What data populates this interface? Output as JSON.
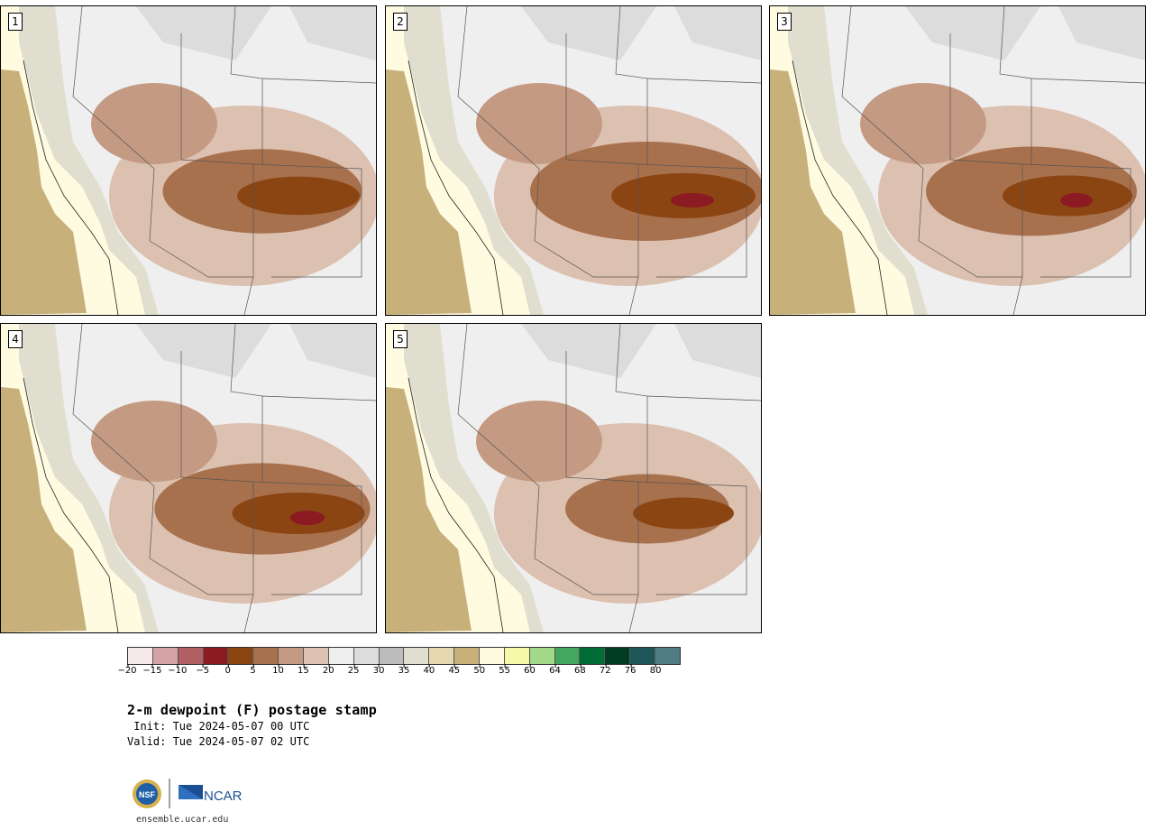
{
  "product": {
    "title": "2-m dewpoint (F) postage stamp",
    "init": " Init: Tue 2024-05-07 00 UTC",
    "valid": "Valid: Tue 2024-05-07 02 UTC"
  },
  "members": [
    {
      "label": "1",
      "intensity": 0.85
    },
    {
      "label": "2",
      "intensity": 1.0
    },
    {
      "label": "3",
      "intensity": 0.9
    },
    {
      "label": "4",
      "intensity": 0.92
    },
    {
      "label": "5",
      "intensity": 0.7
    }
  ],
  "colorbar": {
    "colors": [
      "#f5e9ea",
      "#d4a3a5",
      "#b06064",
      "#8b1a22",
      "#8b4513",
      "#a8714d",
      "#c49a82",
      "#dcc0b0",
      "#efefef",
      "#dcdcdc",
      "#bcbcbc",
      "#e0dfcf",
      "#e6d8b0",
      "#c8b07a",
      "#fffbe1",
      "#f7f7a8",
      "#a2d88a",
      "#45a75d",
      "#006d36",
      "#003d23",
      "#1e5558",
      "#4f7c80"
    ],
    "ticks": [
      "−20",
      "−15",
      "−10",
      "−5",
      "0",
      "5",
      "10",
      "15",
      "20",
      "25",
      "30",
      "35",
      "40",
      "45",
      "50",
      "55",
      "60",
      "64",
      "68",
      "72",
      "76",
      "80"
    ]
  },
  "logos": {
    "nsf_text": "NSF",
    "ncar_text": "NCAR"
  },
  "site": "ensemble.ucar.edu"
}
